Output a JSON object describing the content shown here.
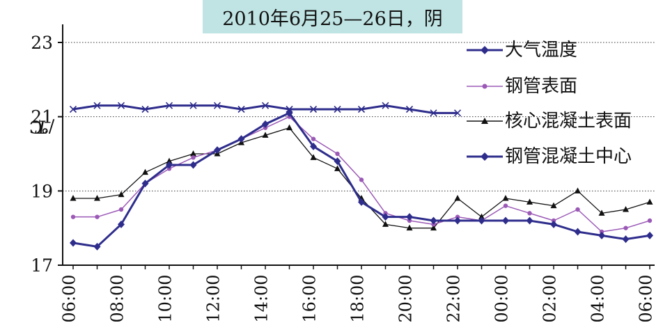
{
  "chart_data": {
    "type": "line",
    "title": "2010年6月25—26日，阴",
    "ylabel_italic": "T",
    "ylabel_rest": "/℃",
    "ylim": [
      17,
      23
    ],
    "yticks": [
      "23",
      "21",
      "19",
      "17"
    ],
    "grid": "dotted horizontal lines at 19, 21 and 23",
    "legend_position": "right",
    "x_tick_labels": [
      "06:00",
      "08:00",
      "10:00",
      "12:00",
      "14:00",
      "16:00",
      "18:00",
      "20:00",
      "22:00",
      "00:00",
      "02:00",
      "04:00",
      "06:00"
    ],
    "series": [
      {
        "name": "大气温度",
        "color": "#2e2d8c",
        "marker": "cross",
        "values": [
          21.2,
          21.3,
          21.3,
          21.2,
          21.3,
          21.3,
          21.3,
          21.2,
          21.3,
          21.2,
          21.2,
          21.2,
          21.2,
          21.3,
          21.2,
          21.1,
          21.1
        ]
      },
      {
        "name": "钢管表面",
        "color": "#9b59b6",
        "marker": "dot",
        "values": [
          18.3,
          18.3,
          18.5,
          19.2,
          19.6,
          19.9,
          20.1,
          20.4,
          20.7,
          21.0,
          20.4,
          20.0,
          19.3,
          18.4,
          18.2,
          18.1,
          18.3,
          18.2,
          18.6,
          18.4,
          18.2,
          18.5,
          17.9,
          18.0,
          18.2
        ]
      },
      {
        "name": "核心混凝土表面",
        "color": "#111111",
        "marker": "triangle",
        "values": [
          18.8,
          18.8,
          18.9,
          19.5,
          19.8,
          20.0,
          20.0,
          20.3,
          20.5,
          20.7,
          19.9,
          19.6,
          18.8,
          18.1,
          18.0,
          18.0,
          18.8,
          18.3,
          18.8,
          18.7,
          18.6,
          19.0,
          18.4,
          18.5,
          18.7
        ]
      },
      {
        "name": "钢管混凝土中心",
        "color": "#2e2d8c",
        "marker": "diamond",
        "values": [
          17.6,
          17.5,
          18.1,
          19.2,
          19.7,
          19.7,
          20.1,
          20.4,
          20.8,
          21.1,
          20.2,
          19.8,
          18.7,
          18.3,
          18.3,
          18.2,
          18.2,
          18.2,
          18.2,
          18.2,
          18.1,
          17.9,
          17.8,
          17.7,
          17.8
        ]
      }
    ],
    "x_hours_from_start": [
      0,
      1,
      2,
      3,
      4,
      5,
      6,
      7,
      8,
      9,
      10,
      11,
      12,
      13,
      14,
      15,
      16,
      17,
      18,
      19,
      20,
      21,
      22,
      23,
      24
    ]
  }
}
